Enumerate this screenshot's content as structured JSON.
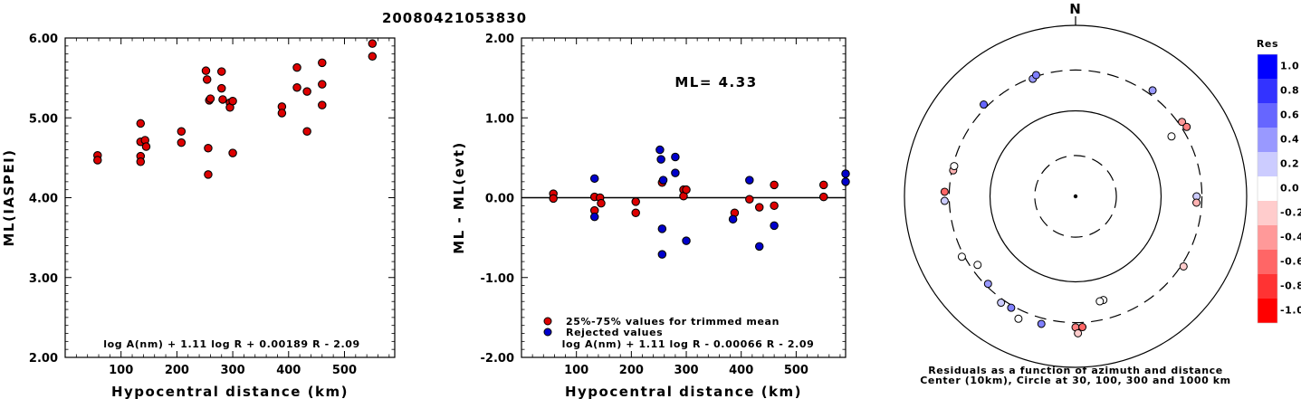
{
  "title": "20080421053830",
  "chart_data": [
    {
      "type": "scatter",
      "ylabel": "ML(IASPEI)",
      "xlabel": "Hypocentral distance (km)",
      "xlim": [
        0,
        590
      ],
      "ylim": [
        2.0,
        6.0
      ],
      "xticks": [
        "100",
        "200",
        "300",
        "400",
        "500"
      ],
      "yticks": [
        "2.00",
        "3.00",
        "4.00",
        "5.00",
        "6.00"
      ],
      "formula": "log A(nm) + 1.11 log R + 0.00189 R - 2.09",
      "series": [
        {
          "color": "#dd0000",
          "points": [
            [
              58,
              4.53
            ],
            [
              58,
              4.47
            ],
            [
              135,
              4.93
            ],
            [
              135,
              4.7
            ],
            [
              135,
              4.52
            ],
            [
              135,
              4.45
            ],
            [
              143,
              4.72
            ],
            [
              145,
              4.64
            ],
            [
              208,
              4.83
            ],
            [
              208,
              4.69
            ],
            [
              252,
              5.59
            ],
            [
              254,
              5.48
            ],
            [
              256,
              4.62
            ],
            [
              256,
              4.29
            ],
            [
              258,
              5.22
            ],
            [
              260,
              5.24
            ],
            [
              280,
              5.58
            ],
            [
              280,
              5.37
            ],
            [
              282,
              5.23
            ],
            [
              295,
              5.19
            ],
            [
              295,
              5.13
            ],
            [
              300,
              5.21
            ],
            [
              300,
              4.56
            ],
            [
              388,
              5.14
            ],
            [
              388,
              5.06
            ],
            [
              415,
              5.63
            ],
            [
              415,
              5.38
            ],
            [
              433,
              5.33
            ],
            [
              433,
              4.83
            ],
            [
              460,
              5.69
            ],
            [
              460,
              5.42
            ],
            [
              460,
              5.16
            ],
            [
              550,
              5.93
            ],
            [
              550,
              5.77
            ]
          ]
        }
      ]
    },
    {
      "type": "scatter",
      "ylabel": "ML - ML(evt)",
      "xlabel": "Hypocentral distance (km)",
      "xlim": [
        0,
        590
      ],
      "ylim": [
        -2.0,
        2.0
      ],
      "xticks": [
        "100",
        "200",
        "300",
        "400",
        "500"
      ],
      "yticks": [
        "-2.00",
        "-1.00",
        "0.00",
        "1.00",
        "2.00"
      ],
      "annotation": "ML= 4.33",
      "formula": "log A(nm) + 1.11 log R - 0.00066 R - 2.09",
      "legend": [
        "25%-75% values for trimmed mean",
        "Rejected values"
      ],
      "series": [
        {
          "name": "25%-75% values for trimmed mean",
          "color": "#dd0000",
          "points": [
            [
              58,
              0.05
            ],
            [
              58,
              -0.01
            ],
            [
              133,
              0.01
            ],
            [
              133,
              -0.16
            ],
            [
              143,
              0.0
            ],
            [
              145,
              -0.07
            ],
            [
              208,
              -0.05
            ],
            [
              208,
              -0.19
            ],
            [
              256,
              0.19
            ],
            [
              295,
              0.1
            ],
            [
              295,
              0.02
            ],
            [
              300,
              0.1
            ],
            [
              388,
              -0.19
            ],
            [
              415,
              -0.02
            ],
            [
              433,
              -0.12
            ],
            [
              460,
              0.16
            ],
            [
              460,
              -0.1
            ],
            [
              550,
              0.16
            ],
            [
              550,
              0.01
            ]
          ]
        },
        {
          "name": "Rejected values",
          "color": "#0000cc",
          "points": [
            [
              133,
              0.24
            ],
            [
              133,
              -0.24
            ],
            [
              252,
              0.6
            ],
            [
              254,
              0.48
            ],
            [
              256,
              -0.39
            ],
            [
              256,
              -0.71
            ],
            [
              258,
              0.22
            ],
            [
              280,
              0.51
            ],
            [
              280,
              0.31
            ],
            [
              300,
              -0.54
            ],
            [
              385,
              -0.27
            ],
            [
              415,
              0.22
            ],
            [
              433,
              -0.61
            ],
            [
              460,
              -0.35
            ],
            [
              590,
              0.3
            ],
            [
              590,
              0.2
            ]
          ]
        }
      ]
    },
    {
      "type": "polar-scatter",
      "north_label": "N",
      "caption": [
        "Residuals as a function of azimuth and distance",
        "Center (10km), Circle at 30, 100, 300 and 1000 km"
      ],
      "rings_km": [
        30,
        100,
        300,
        1000
      ],
      "colorbar": {
        "title": "Res",
        "ticks": [
          "1.0",
          "0.8",
          "0.6",
          "0.4",
          "0.2",
          "0.0",
          "-0.2",
          "-0.4",
          "-0.6",
          "-0.8",
          "-1.0"
        ],
        "colors": [
          "#0000ff",
          "#3333ff",
          "#6666ff",
          "#9999ff",
          "#ccccff",
          "#ffffff",
          "#ffcccc",
          "#ff9999",
          "#ff6666",
          "#ff3333",
          "#ff0000"
        ]
      },
      "points": [
        {
          "azimuth": 315,
          "distance_km": 330,
          "residual": 0.6
        },
        {
          "azimuth": 340,
          "distance_km": 290,
          "residual": 0.4
        },
        {
          "azimuth": 342,
          "distance_km": 310,
          "residual": 0.5
        },
        {
          "azimuth": 36,
          "distance_km": 340,
          "residual": 0.4
        },
        {
          "azimuth": 55,
          "distance_km": 330,
          "residual": -0.4
        },
        {
          "azimuth": 58,
          "distance_km": 340,
          "residual": -0.5
        },
        {
          "azimuth": 58,
          "distance_km": 210,
          "residual": 0.0
        },
        {
          "azimuth": 90,
          "distance_km": 260,
          "residual": 0.2
        },
        {
          "azimuth": 93,
          "distance_km": 260,
          "residual": -0.3
        },
        {
          "azimuth": 123,
          "distance_km": 320,
          "residual": -0.2
        },
        {
          "azimuth": 165,
          "distance_km": 180,
          "residual": 0.0
        },
        {
          "azimuth": 167,
          "distance_km": 182,
          "residual": 0.0
        },
        {
          "azimuth": 180,
          "distance_km": 340,
          "residual": -0.5
        },
        {
          "azimuth": 177,
          "distance_km": 340,
          "residual": -0.6
        },
        {
          "azimuth": 179,
          "distance_km": 400,
          "residual": -0.2
        },
        {
          "azimuth": 195,
          "distance_km": 350,
          "residual": 0.5
        },
        {
          "azimuth": 205,
          "distance_km": 380,
          "residual": 0.0
        },
        {
          "azimuth": 210,
          "distance_km": 320,
          "residual": 0.5
        },
        {
          "azimuth": 215,
          "distance_km": 330,
          "residual": 0.2
        },
        {
          "azimuth": 225,
          "distance_km": 280,
          "residual": 0.4
        },
        {
          "azimuth": 235,
          "distance_km": 250,
          "residual": 0.0
        },
        {
          "azimuth": 242,
          "distance_km": 320,
          "residual": 0.0
        },
        {
          "azimuth": 268,
          "distance_km": 340,
          "residual": 0.2
        },
        {
          "azimuth": 272,
          "distance_km": 340,
          "residual": -0.6
        },
        {
          "azimuth": 282,
          "distance_km": 290,
          "residual": -0.3
        },
        {
          "azimuth": 284,
          "distance_km": 290,
          "residual": 0.0
        }
      ]
    }
  ]
}
